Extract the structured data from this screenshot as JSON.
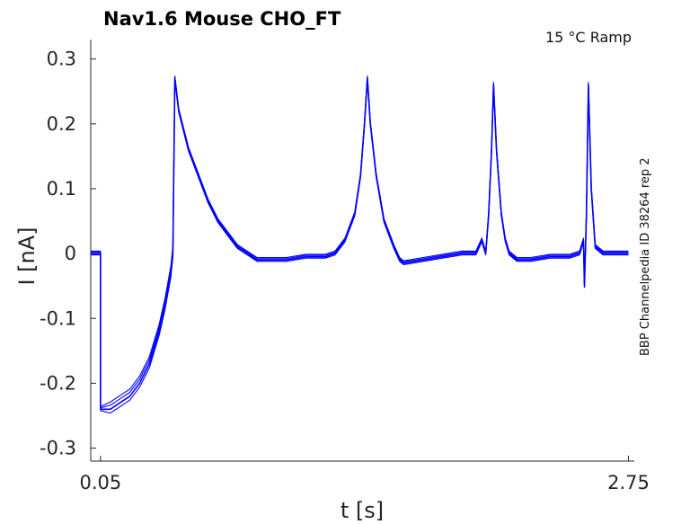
{
  "chart_data": {
    "type": "line",
    "title": "Nav1.6  Mouse  CHO_FT",
    "annotation": "15 °C  Ramp",
    "side_label": "BBP Channelpedia ID 38264 rep 2",
    "xlabel": "t [s]",
    "ylabel": "I [nA]",
    "xlim": [
      0.0,
      2.78
    ],
    "ylim": [
      -0.32,
      0.33
    ],
    "x_ticks": [
      {
        "value": 0.05,
        "label": "0.05"
      },
      {
        "value": 2.75,
        "label": "2.75"
      }
    ],
    "y_ticks": [
      {
        "value": 0.3,
        "label": "0.3"
      },
      {
        "value": 0.2,
        "label": "0.2"
      },
      {
        "value": 0.1,
        "label": "0.1"
      },
      {
        "value": 0.0,
        "label": "0"
      },
      {
        "value": -0.1,
        "label": "-0.1"
      },
      {
        "value": -0.2,
        "label": "-0.2"
      },
      {
        "value": -0.3,
        "label": "-0.3"
      }
    ],
    "grid": false,
    "color": "#0000ff",
    "series": [
      {
        "values": [
          [
            0.0,
            0.0
          ],
          [
            0.04,
            0.0
          ],
          [
            0.05,
            0.0
          ],
          [
            0.05,
            -0.24
          ],
          [
            0.1,
            -0.24
          ],
          [
            0.15,
            -0.23
          ],
          [
            0.2,
            -0.22
          ],
          [
            0.25,
            -0.2
          ],
          [
            0.3,
            -0.17
          ],
          [
            0.35,
            -0.12
          ],
          [
            0.38,
            -0.08
          ],
          [
            0.41,
            -0.03
          ],
          [
            0.42,
            0.0
          ],
          [
            0.43,
            0.27
          ],
          [
            0.45,
            0.22
          ],
          [
            0.5,
            0.16
          ],
          [
            0.55,
            0.12
          ],
          [
            0.6,
            0.08
          ],
          [
            0.65,
            0.05
          ],
          [
            0.7,
            0.03
          ],
          [
            0.75,
            0.01
          ],
          [
            0.8,
            0.0
          ],
          [
            0.85,
            -0.01
          ],
          [
            0.9,
            -0.01
          ],
          [
            1.0,
            -0.01
          ],
          [
            1.1,
            -0.005
          ],
          [
            1.2,
            -0.005
          ],
          [
            1.25,
            0.0
          ],
          [
            1.3,
            0.02
          ],
          [
            1.35,
            0.06
          ],
          [
            1.38,
            0.12
          ],
          [
            1.4,
            0.2
          ],
          [
            1.415,
            0.27
          ],
          [
            1.43,
            0.2
          ],
          [
            1.46,
            0.12
          ],
          [
            1.5,
            0.05
          ],
          [
            1.55,
            0.01
          ],
          [
            1.58,
            -0.01
          ],
          [
            1.6,
            -0.015
          ],
          [
            1.7,
            -0.01
          ],
          [
            1.8,
            -0.005
          ],
          [
            1.9,
            0.0
          ],
          [
            1.97,
            0.0
          ],
          [
            2.0,
            0.02
          ],
          [
            2.02,
            0.0
          ],
          [
            2.035,
            0.06
          ],
          [
            2.05,
            0.16
          ],
          [
            2.06,
            0.26
          ],
          [
            2.075,
            0.16
          ],
          [
            2.1,
            0.06
          ],
          [
            2.12,
            0.02
          ],
          [
            2.14,
            0.0
          ],
          [
            2.18,
            -0.01
          ],
          [
            2.25,
            -0.01
          ],
          [
            2.35,
            -0.005
          ],
          [
            2.45,
            -0.005
          ],
          [
            2.5,
            0.0
          ],
          [
            2.52,
            0.02
          ],
          [
            2.525,
            -0.05
          ],
          [
            2.535,
            0.06
          ],
          [
            2.545,
            0.26
          ],
          [
            2.56,
            0.1
          ],
          [
            2.58,
            0.01
          ],
          [
            2.62,
            0.0
          ],
          [
            2.75,
            0.0
          ]
        ]
      }
    ]
  }
}
